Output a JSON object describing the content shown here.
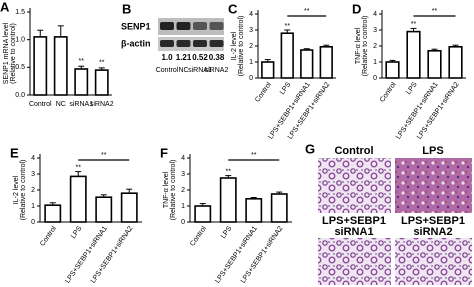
{
  "chart_data": [
    {
      "type": "bar",
      "panel": "A",
      "ylabel": [
        "SENP1 mRNA level",
        "(Relative to control)"
      ],
      "categories": [
        "Control",
        "NC",
        "siRNA1",
        "siRNA2"
      ],
      "values": [
        1.05,
        1.05,
        0.47,
        0.45
      ],
      "errors": [
        0.12,
        0.2,
        0.05,
        0.04
      ],
      "color": "#ffffff",
      "ylim": [
        0,
        1.5
      ],
      "yticks": [
        {
          "value": 0,
          "label": "0.0"
        },
        0.5,
        {
          "value": 1,
          "label": "1.0"
        },
        1.5
      ],
      "annotations": [
        "**",
        "**"
      ]
    },
    {
      "type": "bar",
      "panel": "C",
      "ylabel": [
        "IL-2 level",
        "(Relative to control)"
      ],
      "categories": [
        "Control",
        "LPS",
        "LPS+SEBP1+siRNA1",
        "LPS+SEBP1+siRNA2"
      ],
      "values": [
        1.0,
        2.8,
        1.75,
        1.95
      ],
      "errors": [
        0.15,
        0.2,
        0.08,
        0.1
      ],
      "color": "#ffffff",
      "ylim": [
        0,
        4
      ],
      "yticks": [
        0,
        1,
        2,
        3,
        4
      ],
      "annotations": [
        "**",
        "**"
      ]
    },
    {
      "type": "bar",
      "panel": "D",
      "ylabel": [
        "TNF-α level",
        "(Relative to control)"
      ],
      "categories": [
        "Control",
        "LPS",
        "LPS+SEBP1+siRNA1",
        "LPS+SEBP1+siRNA2"
      ],
      "values": [
        1.0,
        2.9,
        1.7,
        1.95
      ],
      "errors": [
        0.1,
        0.2,
        0.1,
        0.1
      ],
      "color": "#ffffff",
      "ylim": [
        0,
        4
      ],
      "yticks": [
        0,
        1,
        2,
        3,
        4
      ],
      "annotations": [
        "**",
        "**"
      ]
    },
    {
      "type": "bar",
      "panel": "E",
      "ylabel": [
        "IL-2 level",
        "(Relative to control)"
      ],
      "categories": [
        "Control",
        "LPS",
        "LPS+SEBP1+siRNA1",
        "LPS+SEBP1+siRNA2"
      ],
      "values": [
        1.05,
        2.85,
        1.55,
        1.8
      ],
      "errors": [
        0.15,
        0.3,
        0.15,
        0.25
      ],
      "color": "#ffffff",
      "ylim": [
        0,
        4
      ],
      "yticks": [
        0,
        1,
        2,
        3,
        4
      ],
      "annotations": [
        "**",
        "**"
      ]
    },
    {
      "type": "bar",
      "panel": "F",
      "ylabel": [
        "TNF-α level",
        "(Relative to control)"
      ],
      "categories": [
        "Control",
        "LPS",
        "LPS+SEBP1+siRNA1",
        "LPS+SEBP1+siRNA2"
      ],
      "values": [
        1.0,
        2.75,
        1.45,
        1.75
      ],
      "errors": [
        0.15,
        0.15,
        0.08,
        0.12
      ],
      "color": "#ffffff",
      "ylim": [
        0,
        4
      ],
      "yticks": [
        0,
        1,
        2,
        3,
        4
      ],
      "annotations": [
        "**",
        "**"
      ]
    }
  ],
  "blot": {
    "panel": "B",
    "rows": [
      "SENP1",
      "β-actin"
    ],
    "ratios": [
      "1.0",
      "1.21",
      "0.52",
      "0.38"
    ],
    "lanes": [
      "Control",
      "NC",
      "siRNA1",
      "siRNA2"
    ]
  },
  "histology": {
    "panel": "G",
    "labels": [
      [
        "Control"
      ],
      [
        "LPS"
      ],
      [
        "LPS+SEBP1",
        "siRNA1"
      ],
      [
        "LPS+SEBP1",
        "siRNA2"
      ]
    ]
  }
}
